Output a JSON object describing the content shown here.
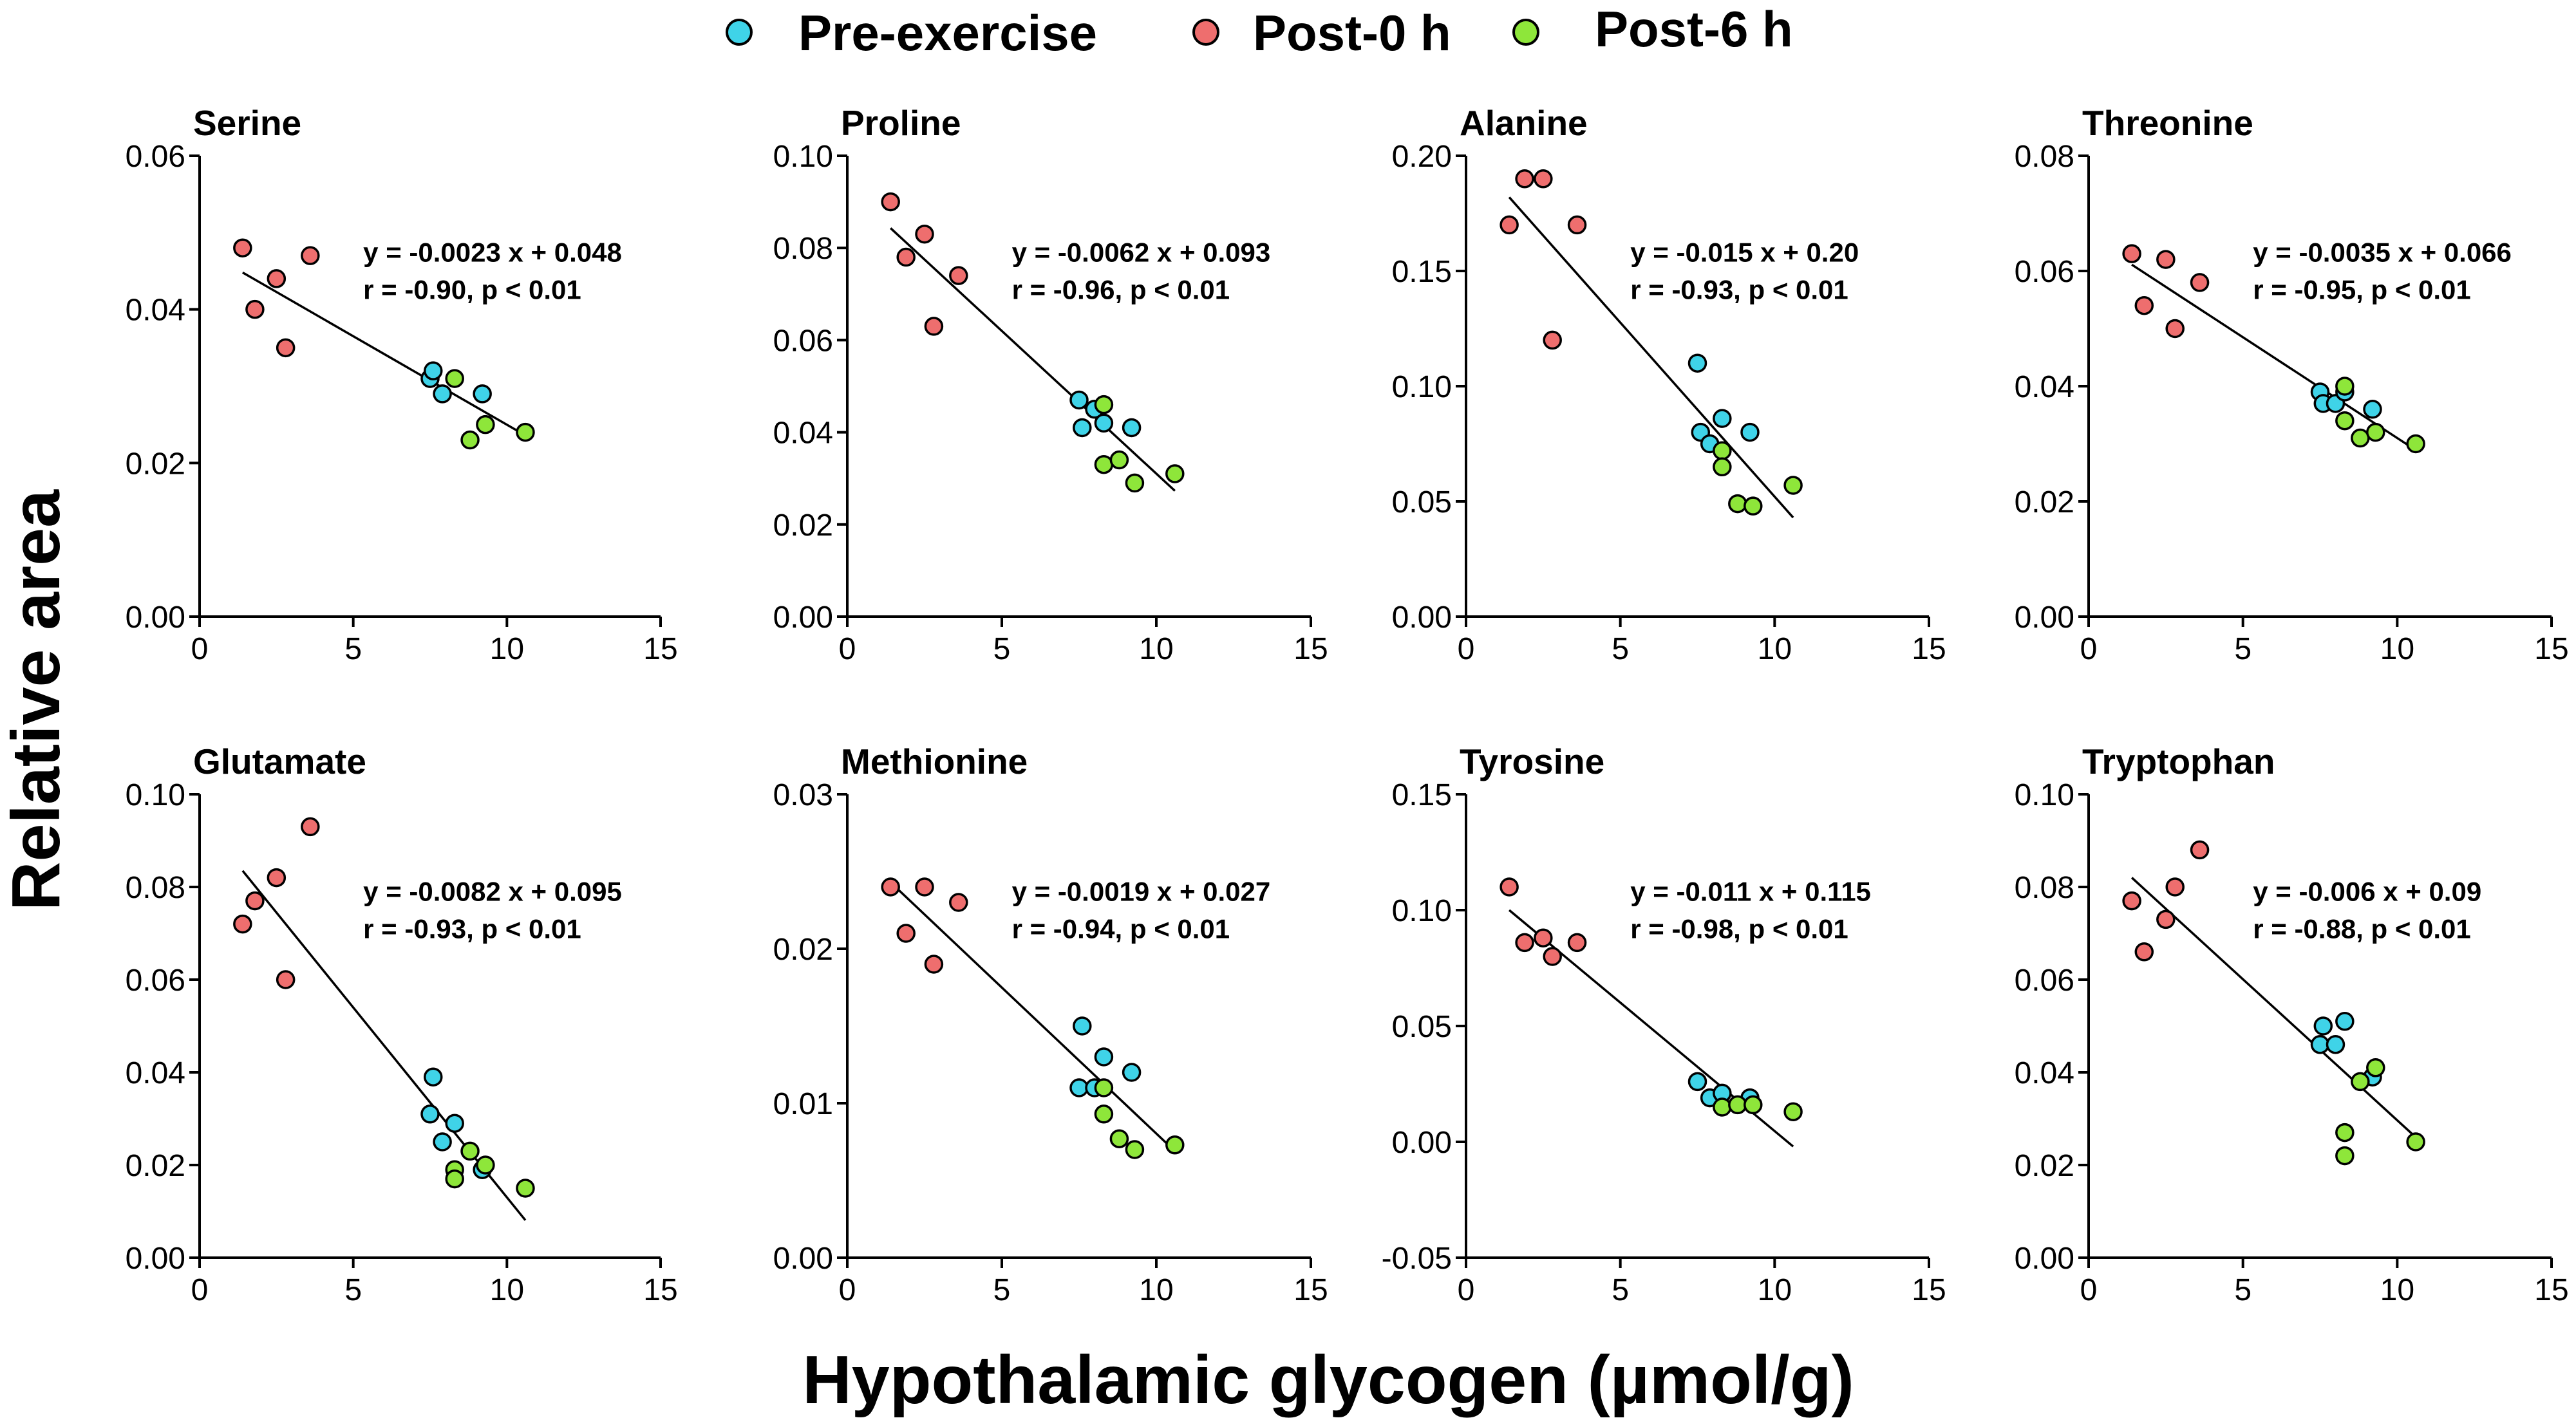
{
  "figure": {
    "ylabel": "Relative area",
    "xlabel": "Hypothalamic glycogen (µmol/g)"
  },
  "legend": [
    {
      "name": "Pre-exercise",
      "color": "#3fd3e8"
    },
    {
      "name": "Post-0 h",
      "color": "#ee6e6e"
    },
    {
      "name": "Post-6 h",
      "color": "#8ee63a"
    }
  ],
  "chart_data": [
    {
      "type": "scatter",
      "title": "Serine",
      "xlim": [
        0,
        15
      ],
      "xticks": [
        "0",
        "5",
        "10",
        "15"
      ],
      "xtick_values": [
        0,
        5,
        10,
        15
      ],
      "ylim": [
        0,
        0.06
      ],
      "yticks": [
        "0.00",
        "0.02",
        "0.04",
        "0.06"
      ],
      "ytick_values": [
        0,
        0.02,
        0.04,
        0.06
      ],
      "equation": "y = -0.0023 x + 0.048",
      "stats": "r = -0.90, p < 0.01",
      "fit": {
        "x": [
          1.4,
          10.6
        ],
        "y": [
          0.0448,
          0.0236
        ]
      },
      "series": [
        {
          "name": "Pre-exercise",
          "x": [
            7.5,
            7.6,
            7.9,
            9.2
          ],
          "y": [
            0.031,
            0.032,
            0.029,
            0.029
          ]
        },
        {
          "name": "Post-0 h",
          "x": [
            1.4,
            1.8,
            2.5,
            2.8,
            3.6
          ],
          "y": [
            0.048,
            0.04,
            0.044,
            0.035,
            0.047
          ]
        },
        {
          "name": "Post-6 h",
          "x": [
            8.3,
            8.8,
            9.3,
            10.6
          ],
          "y": [
            0.031,
            0.023,
            0.025,
            0.024
          ]
        }
      ]
    },
    {
      "type": "scatter",
      "title": "Proline",
      "xlim": [
        0,
        15
      ],
      "xticks": [
        "0",
        "5",
        "10",
        "15"
      ],
      "xtick_values": [
        0,
        5,
        10,
        15
      ],
      "ylim": [
        0,
        0.1
      ],
      "yticks": [
        "0.00",
        "0.02",
        "0.04",
        "0.06",
        "0.08",
        "0.10"
      ],
      "ytick_values": [
        0,
        0.02,
        0.04,
        0.06,
        0.08,
        0.1
      ],
      "equation": "y = -0.0062 x + 0.093",
      "stats": "r = -0.96, p < 0.01",
      "fit": {
        "x": [
          1.4,
          10.6
        ],
        "y": [
          0.0843,
          0.0273
        ]
      },
      "series": [
        {
          "name": "Pre-exercise",
          "x": [
            7.5,
            7.6,
            8.0,
            8.3,
            9.2
          ],
          "y": [
            0.047,
            0.041,
            0.045,
            0.042,
            0.041
          ]
        },
        {
          "name": "Post-0 h",
          "x": [
            1.4,
            1.9,
            2.5,
            2.8,
            3.6
          ],
          "y": [
            0.09,
            0.078,
            0.083,
            0.063,
            0.074
          ]
        },
        {
          "name": "Post-6 h",
          "x": [
            8.3,
            8.3,
            8.8,
            9.3,
            10.6
          ],
          "y": [
            0.046,
            0.033,
            0.034,
            0.029,
            0.031
          ]
        }
      ]
    },
    {
      "type": "scatter",
      "title": "Alanine",
      "xlim": [
        0,
        15
      ],
      "xticks": [
        "0",
        "5",
        "10",
        "15"
      ],
      "xtick_values": [
        0,
        5,
        10,
        15
      ],
      "ylim": [
        0,
        0.2
      ],
      "yticks": [
        "0.00",
        "0.05",
        "0.10",
        "0.15",
        "0.20"
      ],
      "ytick_values": [
        0,
        0.05,
        0.1,
        0.15,
        0.2
      ],
      "equation": "y = -0.015 x + 0.20",
      "stats": "r = -0.93, p < 0.01",
      "fit": {
        "x": [
          1.4,
          10.6
        ],
        "y": [
          0.182,
          0.043
        ]
      },
      "series": [
        {
          "name": "Pre-exercise",
          "x": [
            7.5,
            7.6,
            7.9,
            8.3,
            9.2
          ],
          "y": [
            0.11,
            0.08,
            0.075,
            0.086,
            0.08
          ]
        },
        {
          "name": "Post-0 h",
          "x": [
            1.4,
            1.9,
            2.5,
            2.8,
            3.6
          ],
          "y": [
            0.17,
            0.19,
            0.19,
            0.12,
            0.17
          ]
        },
        {
          "name": "Post-6 h",
          "x": [
            8.3,
            8.3,
            8.8,
            9.3,
            10.6
          ],
          "y": [
            0.072,
            0.065,
            0.049,
            0.048,
            0.057
          ]
        }
      ]
    },
    {
      "type": "scatter",
      "title": "Threonine",
      "xlim": [
        0,
        15
      ],
      "xticks": [
        "0",
        "5",
        "10",
        "15"
      ],
      "xtick_values": [
        0,
        5,
        10,
        15
      ],
      "ylim": [
        0,
        0.08
      ],
      "yticks": [
        "0.00",
        "0.02",
        "0.04",
        "0.06",
        "0.08"
      ],
      "ytick_values": [
        0,
        0.02,
        0.04,
        0.06,
        0.08
      ],
      "equation": "y = -0.0035 x + 0.066",
      "stats": "r = -0.95, p < 0.01",
      "fit": {
        "x": [
          1.4,
          10.6
        ],
        "y": [
          0.0611,
          0.0289
        ]
      },
      "series": [
        {
          "name": "Pre-exercise",
          "x": [
            7.5,
            7.6,
            8.0,
            8.3,
            9.2
          ],
          "y": [
            0.039,
            0.037,
            0.037,
            0.039,
            0.036
          ]
        },
        {
          "name": "Post-0 h",
          "x": [
            1.4,
            1.8,
            2.5,
            2.8,
            3.6
          ],
          "y": [
            0.063,
            0.054,
            0.062,
            0.05,
            0.058
          ]
        },
        {
          "name": "Post-6 h",
          "x": [
            8.3,
            8.3,
            8.8,
            9.3,
            10.6
          ],
          "y": [
            0.04,
            0.034,
            0.031,
            0.032,
            0.03
          ]
        }
      ]
    },
    {
      "type": "scatter",
      "title": "Glutamate",
      "xlim": [
        0,
        15
      ],
      "xticks": [
        "0",
        "5",
        "10",
        "15"
      ],
      "xtick_values": [
        0,
        5,
        10,
        15
      ],
      "ylim": [
        0,
        0.1
      ],
      "yticks": [
        "0.00",
        "0.02",
        "0.04",
        "0.06",
        "0.08",
        "0.10"
      ],
      "ytick_values": [
        0,
        0.02,
        0.04,
        0.06,
        0.08,
        0.1
      ],
      "equation": "y = -0.0082 x + 0.095",
      "stats": "r = -0.93, p < 0.01",
      "fit": {
        "x": [
          1.4,
          10.6
        ],
        "y": [
          0.0835,
          0.0081
        ]
      },
      "series": [
        {
          "name": "Pre-exercise",
          "x": [
            7.5,
            7.6,
            7.9,
            8.3,
            9.2
          ],
          "y": [
            0.031,
            0.039,
            0.025,
            0.029,
            0.019
          ]
        },
        {
          "name": "Post-0 h",
          "x": [
            1.4,
            1.8,
            2.5,
            2.8,
            3.6
          ],
          "y": [
            0.072,
            0.077,
            0.082,
            0.06,
            0.093
          ]
        },
        {
          "name": "Post-6 h",
          "x": [
            8.3,
            8.3,
            8.8,
            9.3,
            10.6
          ],
          "y": [
            0.019,
            0.017,
            0.023,
            0.02,
            0.015
          ]
        }
      ]
    },
    {
      "type": "scatter",
      "title": "Methionine",
      "xlim": [
        0,
        15
      ],
      "xticks": [
        "0",
        "5",
        "10",
        "15"
      ],
      "xtick_values": [
        0,
        5,
        10,
        15
      ],
      "ylim": [
        0,
        0.03
      ],
      "yticks": [
        "0.00",
        "0.01",
        "0.02",
        "0.03"
      ],
      "ytick_values": [
        0,
        0.01,
        0.02,
        0.03
      ],
      "equation": "y = -0.0019 x + 0.027",
      "stats": "r = -0.94, p < 0.01",
      "fit": {
        "x": [
          1.4,
          10.6
        ],
        "y": [
          0.0243,
          0.0069
        ]
      },
      "series": [
        {
          "name": "Pre-exercise",
          "x": [
            7.5,
            7.6,
            8.0,
            8.3,
            9.2
          ],
          "y": [
            0.011,
            0.015,
            0.011,
            0.013,
            0.012
          ]
        },
        {
          "name": "Post-0 h",
          "x": [
            1.4,
            1.9,
            2.5,
            2.8,
            3.6
          ],
          "y": [
            0.024,
            0.021,
            0.024,
            0.019,
            0.023
          ]
        },
        {
          "name": "Post-6 h",
          "x": [
            8.3,
            8.3,
            8.8,
            9.3,
            10.6
          ],
          "y": [
            0.011,
            0.0093,
            0.0077,
            0.007,
            0.0073
          ]
        }
      ]
    },
    {
      "type": "scatter",
      "title": "Tyrosine",
      "xlim": [
        0,
        15
      ],
      "xticks": [
        "0",
        "5",
        "10",
        "15"
      ],
      "xtick_values": [
        0,
        5,
        10,
        15
      ],
      "ylim": [
        -0.05,
        0.15
      ],
      "yticks": [
        "-0.05",
        "0.00",
        "0.05",
        "0.10",
        "0.15"
      ],
      "ytick_values": [
        -0.05,
        0,
        0.05,
        0.1,
        0.15
      ],
      "equation": "y = -0.011 x + 0.115",
      "stats": "r = -0.98, p < 0.01",
      "fit": {
        "x": [
          1.4,
          10.6
        ],
        "y": [
          0.1,
          -0.002
        ]
      },
      "series": [
        {
          "name": "Pre-exercise",
          "x": [
            7.5,
            7.9,
            8.3,
            9.2
          ],
          "y": [
            0.026,
            0.019,
            0.021,
            0.019
          ]
        },
        {
          "name": "Post-0 h",
          "x": [
            1.4,
            1.9,
            2.5,
            2.8,
            3.6
          ],
          "y": [
            0.11,
            0.086,
            0.088,
            0.08,
            0.086
          ]
        },
        {
          "name": "Post-6 h",
          "x": [
            8.3,
            8.8,
            9.3,
            10.6
          ],
          "y": [
            0.015,
            0.016,
            0.016,
            0.013
          ]
        }
      ]
    },
    {
      "type": "scatter",
      "title": "Tryptophan",
      "xlim": [
        0,
        15
      ],
      "xticks": [
        "0",
        "5",
        "10",
        "15"
      ],
      "xtick_values": [
        0,
        5,
        10,
        15
      ],
      "ylim": [
        0,
        0.1
      ],
      "yticks": [
        "0.00",
        "0.02",
        "0.04",
        "0.06",
        "0.08",
        "0.10"
      ],
      "ytick_values": [
        0,
        0.02,
        0.04,
        0.06,
        0.08,
        0.1
      ],
      "equation": "y = -0.006 x + 0.09",
      "stats": "r = -0.88, p < 0.01",
      "fit": {
        "x": [
          1.4,
          10.6
        ],
        "y": [
          0.082,
          0.026
        ]
      },
      "series": [
        {
          "name": "Pre-exercise",
          "x": [
            7.5,
            7.6,
            8.0,
            8.3,
            9.2
          ],
          "y": [
            0.046,
            0.05,
            0.046,
            0.051,
            0.039
          ]
        },
        {
          "name": "Post-0 h",
          "x": [
            1.4,
            1.8,
            2.5,
            2.8,
            3.6
          ],
          "y": [
            0.077,
            0.066,
            0.073,
            0.08,
            0.088
          ]
        },
        {
          "name": "Post-6 h",
          "x": [
            8.3,
            8.3,
            8.8,
            9.3,
            10.6
          ],
          "y": [
            0.027,
            0.022,
            0.038,
            0.041,
            0.025
          ]
        }
      ]
    }
  ]
}
